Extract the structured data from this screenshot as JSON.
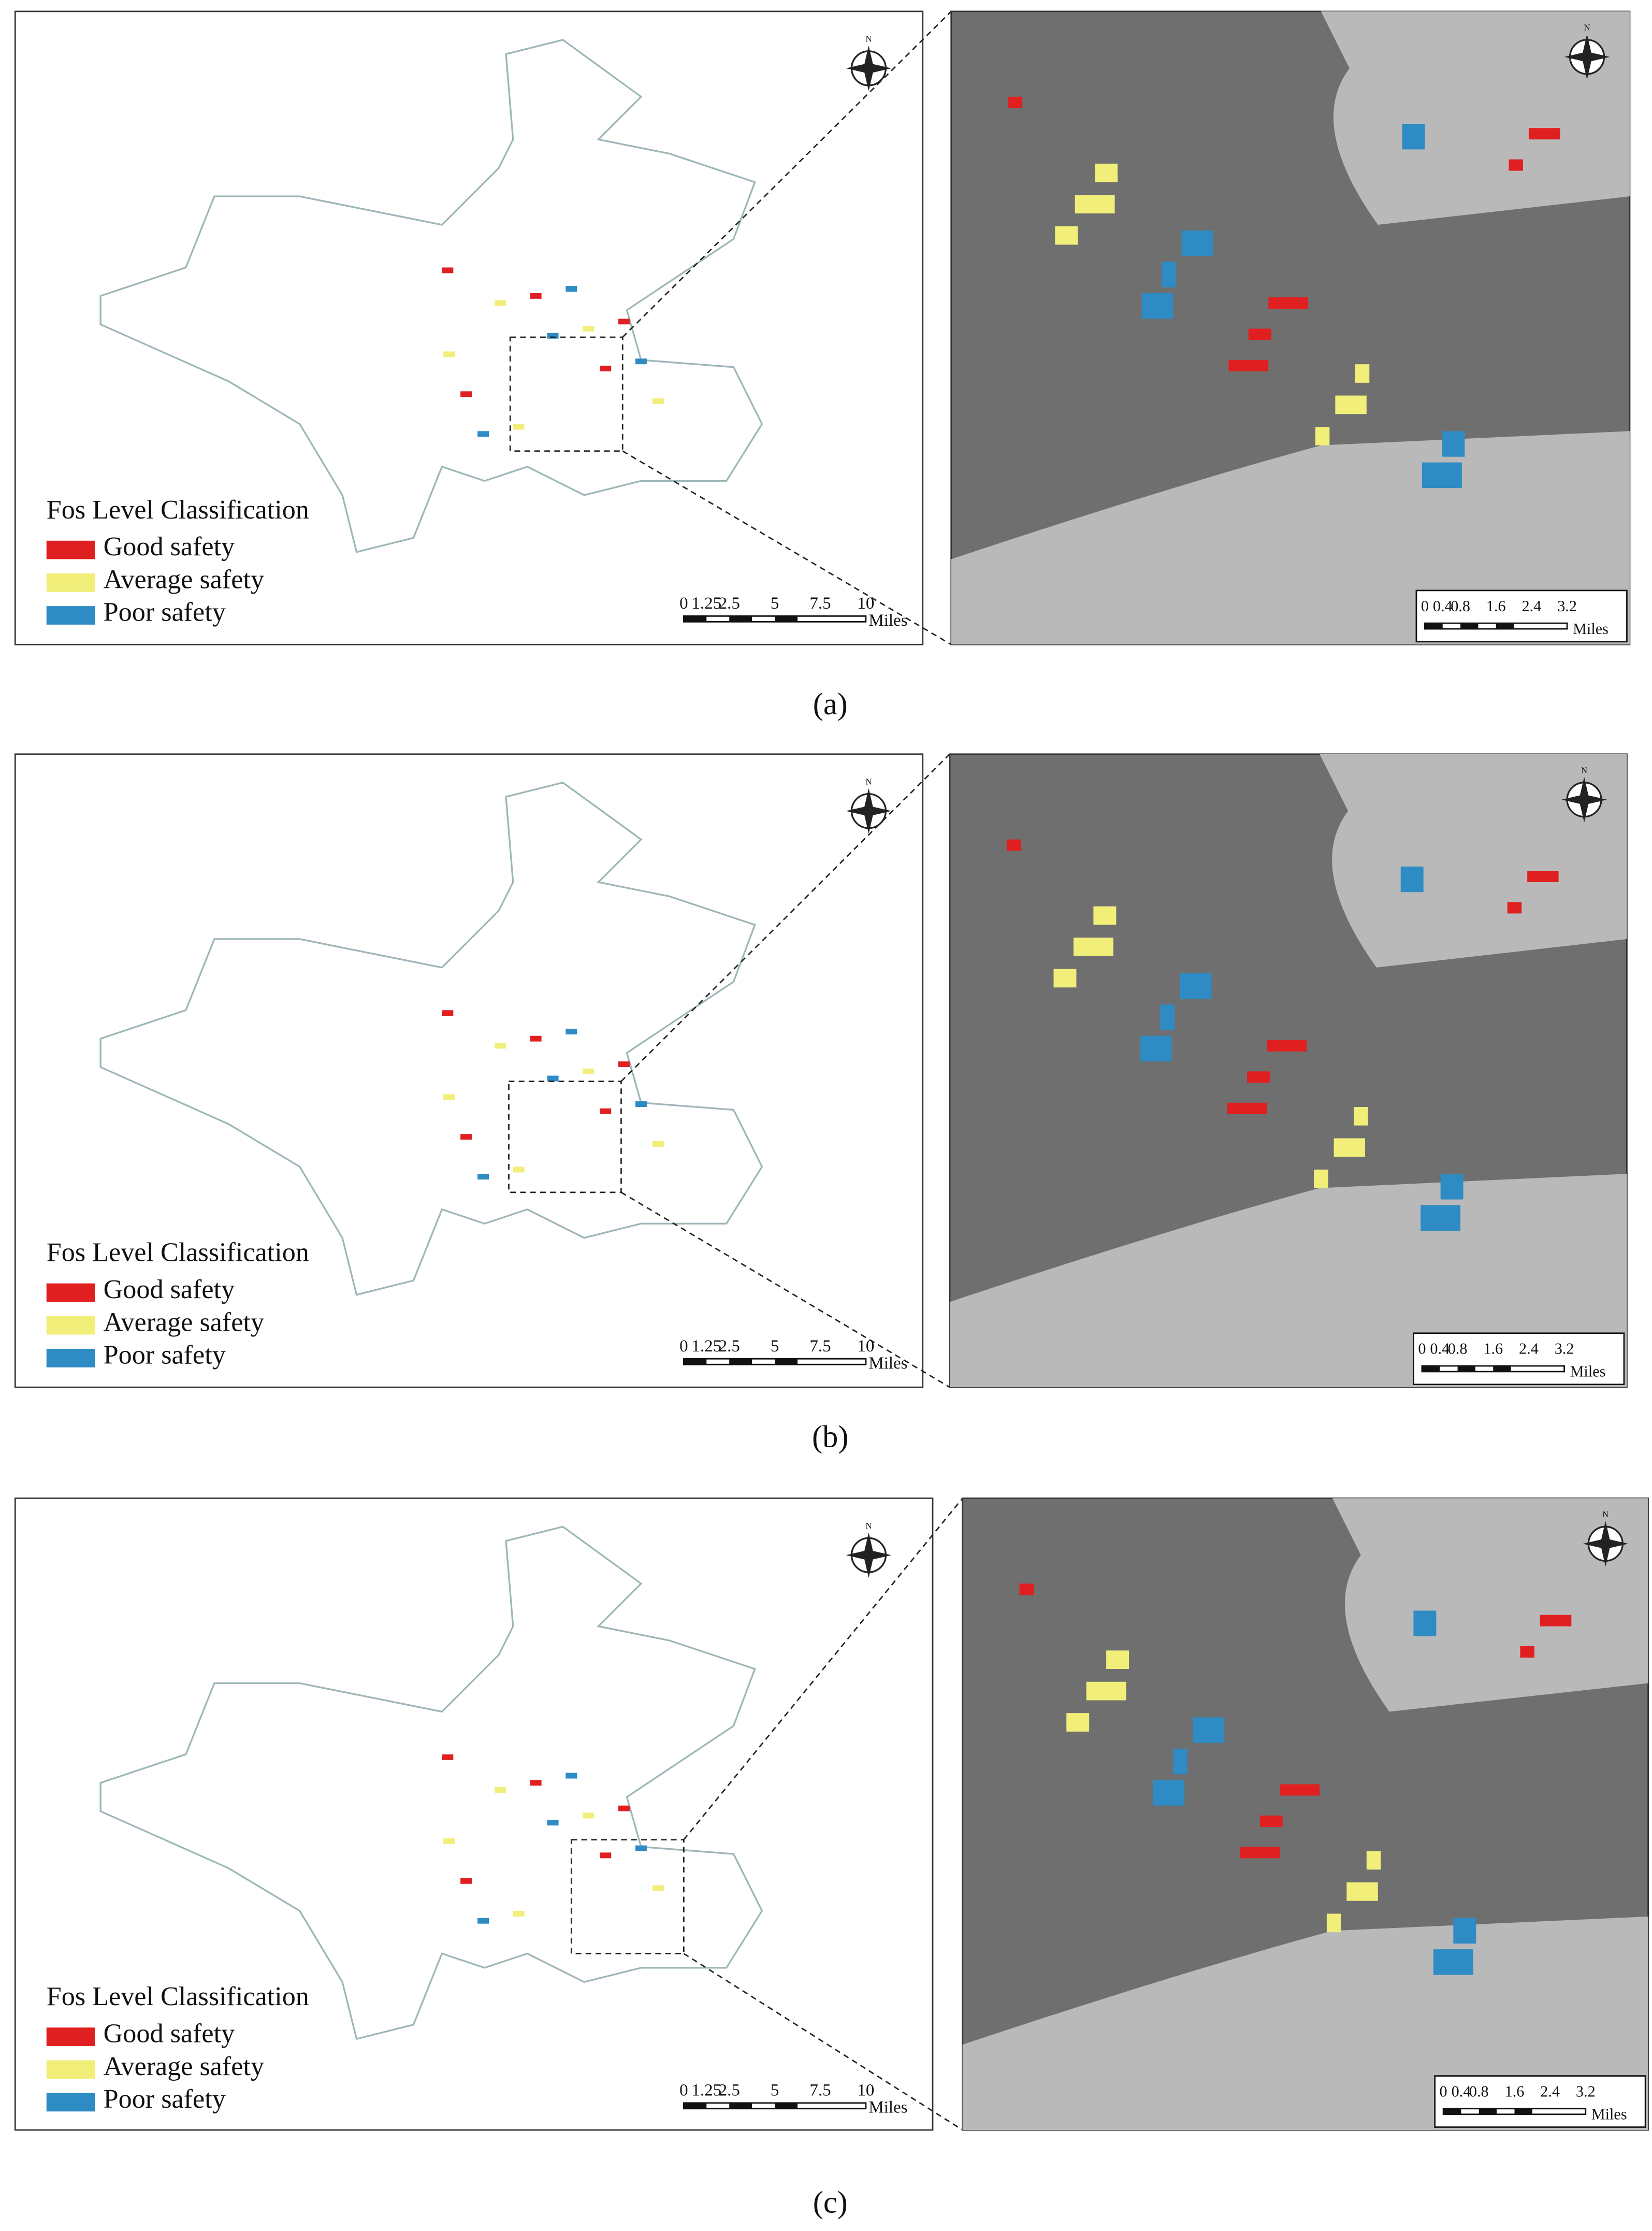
{
  "panels": [
    {
      "caption": "(a)",
      "north": "N",
      "legend": {
        "title": "Fos Level Classification",
        "items": [
          {
            "label": "Good safety",
            "color": "#e02020"
          },
          {
            "label": "Average safety",
            "color": "#f2ee7a"
          },
          {
            "label": "Poor safety",
            "color": "#2e8bc4"
          }
        ]
      },
      "scale_main": {
        "ticks": [
          "0",
          "1.25",
          "2.5",
          "5",
          "7.5",
          "10"
        ],
        "unit": "Miles"
      },
      "scale_inset": {
        "ticks": [
          "0",
          "0.4",
          "0.8",
          "1.6",
          "2.4",
          "3.2"
        ],
        "unit": "Miles"
      }
    },
    {
      "caption": "(b)",
      "north": "N",
      "legend": {
        "title": "Fos Level Classification",
        "items": [
          {
            "label": "Good safety",
            "color": "#e02020"
          },
          {
            "label": "Average safety",
            "color": "#f2ee7a"
          },
          {
            "label": "Poor safety",
            "color": "#2e8bc4"
          }
        ]
      },
      "scale_main": {
        "ticks": [
          "0",
          "1.25",
          "2.5",
          "5",
          "7.5",
          "10"
        ],
        "unit": "Miles"
      },
      "scale_inset": {
        "ticks": [
          "0",
          "0.4",
          "0.8",
          "1.6",
          "2.4",
          "3.2"
        ],
        "unit": "Miles"
      }
    },
    {
      "caption": "(c)",
      "north": "N",
      "legend": {
        "title": "Fos Level Classification",
        "items": [
          {
            "label": "Good safety",
            "color": "#e02020"
          },
          {
            "label": "Average safety",
            "color": "#f2ee7a"
          },
          {
            "label": "Poor safety",
            "color": "#2e8bc4"
          }
        ]
      },
      "scale_main": {
        "ticks": [
          "0",
          "1.25",
          "2.5",
          "5",
          "7.5",
          "10"
        ],
        "unit": "Miles"
      },
      "scale_inset": {
        "ticks": [
          "0",
          "0.4",
          "0.8",
          "1.6",
          "2.4",
          "3.2"
        ],
        "unit": "Miles"
      }
    }
  ]
}
